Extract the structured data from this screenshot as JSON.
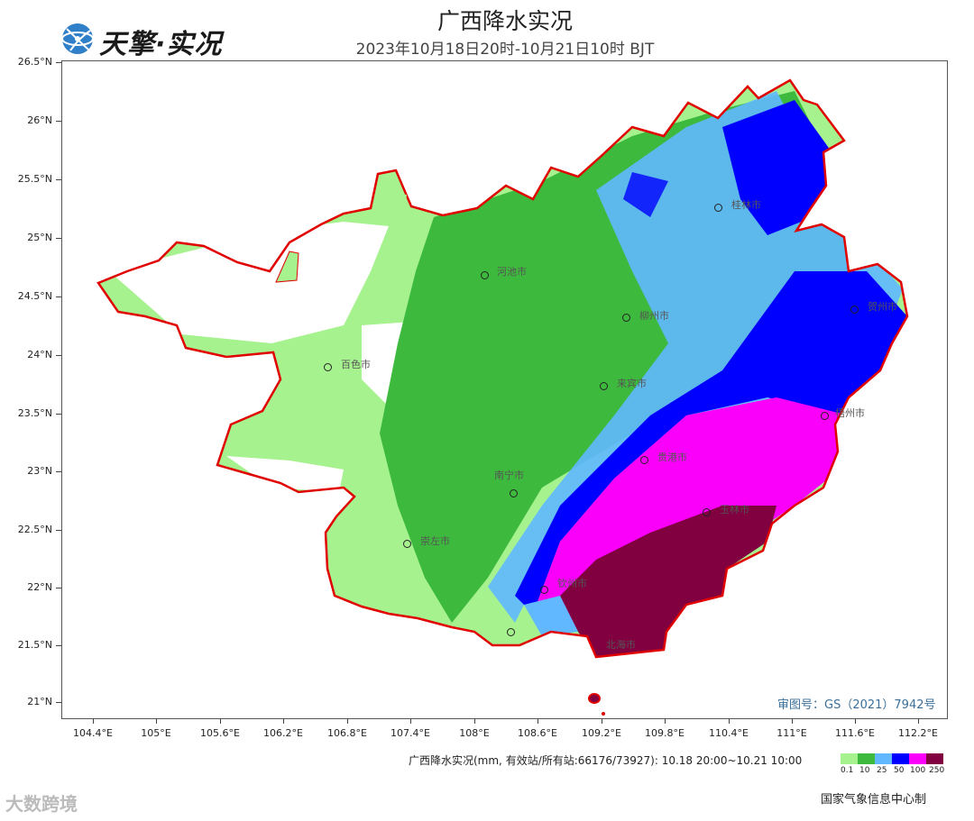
{
  "header": {
    "brand": "天擎·实况",
    "title": "广西降水实况",
    "subtitle": "2023年10月18日20时-10月21日10时 BJT"
  },
  "axes": {
    "y_ticks": [
      "26.5°N",
      "26°N",
      "25.5°N",
      "25°N",
      "24.5°N",
      "24°N",
      "23.5°N",
      "23°N",
      "22.5°N",
      "22°N",
      "21.5°N",
      "21°N"
    ],
    "x_ticks": [
      "104.4°E",
      "105°E",
      "105.6°E",
      "106.2°E",
      "106.8°E",
      "107.4°E",
      "108°E",
      "108.6°E",
      "109.2°E",
      "109.8°E",
      "110.4°E",
      "111°E",
      "111.6°E",
      "112.2°E"
    ]
  },
  "cities": [
    "桂林市",
    "河池市",
    "柳州市",
    "贺州市",
    "百色市",
    "来宾市",
    "梧州市",
    "贵港市",
    "南宁市",
    "玉林市",
    "崇左市",
    "钦州市",
    "北海市"
  ],
  "approval_number": "审图号：GS（2021）7942号",
  "legend": {
    "caption": "广西降水实况(mm, 有效站/所有站:66176/73927): 10.18 20:00~10.21 10:00",
    "levels": [
      {
        "label": "0.1",
        "color": "#a6f28f"
      },
      {
        "label": "10",
        "color": "#3dba3d"
      },
      {
        "label": "25",
        "color": "#61b8ff"
      },
      {
        "label": "50",
        "color": "#0000ff"
      },
      {
        "label": "100",
        "color": "#fa00fa"
      },
      {
        "label": "250",
        "color": "#800040"
      }
    ]
  },
  "credit": "国家气象信息中心制",
  "watermark": "大数跨境",
  "colors": {
    "border": "#e00000",
    "light_green": "#a6f28f",
    "green": "#3dba3d",
    "light_blue": "#61b8ff",
    "blue": "#0000ff",
    "magenta": "#fa00fa",
    "maroon": "#800040"
  }
}
